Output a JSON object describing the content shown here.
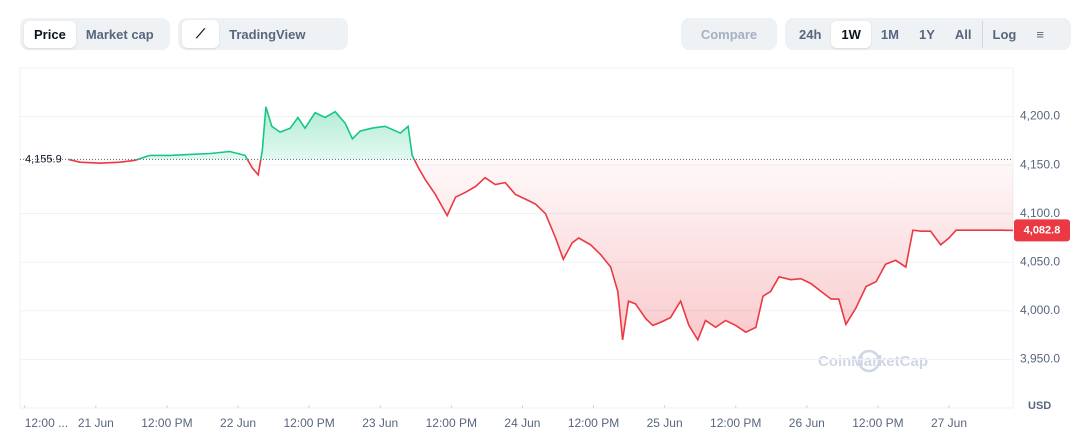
{
  "toolbar": {
    "view_tabs": [
      "Price",
      "Market cap"
    ],
    "tradingview": "TradingView",
    "compare": "Compare",
    "ranges": [
      "24h",
      "1W",
      "1M",
      "1Y",
      "All"
    ],
    "log": "Log"
  },
  "watermark": "CoinMarketCap",
  "chart_data": {
    "type": "line",
    "up_color": "#16c784",
    "down_color": "#ea3943",
    "baseline": {
      "value": 4155.9,
      "label": "4,155.9"
    },
    "current_price": {
      "value": 4082.8,
      "label": "4,082.8"
    },
    "currency": "USD",
    "xlim": [
      -12.8,
      154.8
    ],
    "xticks": [
      {
        "value": -12,
        "label": "12:00 ..."
      },
      {
        "value": 0,
        "label": "21 Jun"
      },
      {
        "value": 12,
        "label": "12:00 PM"
      },
      {
        "value": 24,
        "label": "22 Jun"
      },
      {
        "value": 36,
        "label": "12:00 PM"
      },
      {
        "value": 48,
        "label": "23 Jun"
      },
      {
        "value": 60,
        "label": "12:00 PM"
      },
      {
        "value": 72,
        "label": "24 Jun"
      },
      {
        "value": 84,
        "label": "12:00 PM"
      },
      {
        "value": 96,
        "label": "25 Jun"
      },
      {
        "value": 108,
        "label": "12:00 PM"
      },
      {
        "value": 120,
        "label": "26 Jun"
      },
      {
        "value": 132,
        "label": "12:00 PM"
      },
      {
        "value": 144,
        "label": "27 Jun"
      }
    ],
    "ylim": [
      3903,
      4250
    ],
    "yticks": [
      {
        "value": 3950,
        "label": "3,950.0"
      },
      {
        "value": 4000,
        "label": "4,000.0"
      },
      {
        "value": 4050,
        "label": "4,050.0"
      },
      {
        "value": 4100,
        "label": "4,100.0"
      },
      {
        "value": 4150,
        "label": "4,150.0"
      },
      {
        "value": 4200,
        "label": "4,200.0"
      }
    ],
    "x": [
      -4.7,
      -2.7,
      0.7,
      4.1,
      6.6,
      9.1,
      12.5,
      15.9,
      19.3,
      22.6,
      25.2,
      26.4,
      27.4,
      28.1,
      28.7,
      29.7,
      31.1,
      32.8,
      34.1,
      35.3,
      37.0,
      38.7,
      40.4,
      42.1,
      43.3,
      44.6,
      46.6,
      48.8,
      51.4,
      52.7,
      53.4,
      54.4,
      55.6,
      57.3,
      59.3,
      60.7,
      62.4,
      64.1,
      65.7,
      67.4,
      69.1,
      70.8,
      72.5,
      74.2,
      75.9,
      77.6,
      78.9,
      80.4,
      81.5,
      83.5,
      85.2,
      86.9,
      88.1,
      88.9,
      89.9,
      91.1,
      92.8,
      94.0,
      95.3,
      97.0,
      98.7,
      100.1,
      101.6,
      102.9,
      104.6,
      106.3,
      108.0,
      109.7,
      111.4,
      112.6,
      113.9,
      115.3,
      117.3,
      119.0,
      120.7,
      122.4,
      124.1,
      125.4,
      126.6,
      128.3,
      130.0,
      131.7,
      133.3,
      135.0,
      136.7,
      137.9,
      139.3,
      140.9,
      142.6,
      144.0,
      145.2,
      147.7,
      150.3,
      152.8,
      154.8
    ],
    "values": [
      4156,
      4153,
      4152,
      4153,
      4155,
      4160,
      4160,
      4161,
      4162,
      4164,
      4160,
      4147,
      4140,
      4165,
      4210,
      4190,
      4184,
      4188,
      4199,
      4188,
      4204,
      4199,
      4205,
      4193,
      4177,
      4185,
      4188,
      4190,
      4183,
      4190,
      4160,
      4148,
      4135,
      4120,
      4098,
      4117,
      4122,
      4128,
      4137,
      4130,
      4132,
      4120,
      4115,
      4110,
      4100,
      4075,
      4053,
      4070,
      4075,
      4068,
      4058,
      4045,
      4020,
      3970,
      4010,
      4007,
      3992,
      3985,
      3988,
      3993,
      4010,
      3985,
      3970,
      3990,
      3983,
      3990,
      3985,
      3978,
      3983,
      4015,
      4020,
      4035,
      4032,
      4033,
      4028,
      4020,
      4012,
      4012,
      3986,
      4003,
      4025,
      4030,
      4048,
      4052,
      4045,
      4083,
      4082,
      4082,
      4068,
      4075,
      4083,
      4083,
      4083,
      4083,
      4082.8
    ]
  }
}
